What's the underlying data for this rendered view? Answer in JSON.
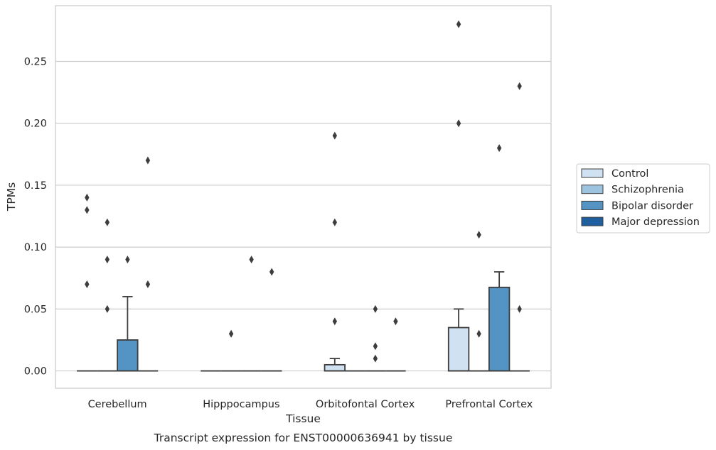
{
  "chart_data": {
    "type": "box",
    "caption": "Transcript expression for ENST00000636941 by tissue",
    "xlabel": "Tissue",
    "ylabel": "TPMs",
    "ylim": [
      -0.014,
      0.295
    ],
    "yticks": [
      0.0,
      0.05,
      0.1,
      0.15,
      0.2,
      0.25
    ],
    "ytick_labels": [
      "0.00",
      "0.05",
      "0.10",
      "0.15",
      "0.20",
      "0.25"
    ],
    "grid": true,
    "legend_position": "right",
    "categories": [
      "Cerebellum",
      "Hipppocampus",
      "Orbitofontal Cortex",
      "Prefrontal Cortex"
    ],
    "series": [
      {
        "name": "Control",
        "color": "#d0e1f1",
        "boxes": [
          {
            "q1": 0.0,
            "median": 0.0,
            "q3": 0.0,
            "whisker_low": 0.0,
            "whisker_high": 0.0,
            "outliers": [
              0.07,
              0.13,
              0.14
            ]
          },
          {
            "q1": 0.0,
            "median": 0.0,
            "q3": 0.0,
            "whisker_low": 0.0,
            "whisker_high": 0.0,
            "outliers": []
          },
          {
            "q1": 0.0,
            "median": 0.0,
            "q3": 0.005,
            "whisker_low": 0.0,
            "whisker_high": 0.01,
            "outliers": [
              0.04,
              0.12,
              0.19
            ]
          },
          {
            "q1": 0.0,
            "median": 0.0,
            "q3": 0.035,
            "whisker_low": 0.0,
            "whisker_high": 0.05,
            "outliers": [
              0.2,
              0.28
            ]
          }
        ]
      },
      {
        "name": "Schizophrenia",
        "color": "#9dc4df",
        "boxes": [
          {
            "q1": 0.0,
            "median": 0.0,
            "q3": 0.0,
            "whisker_low": 0.0,
            "whisker_high": 0.0,
            "outliers": [
              0.05,
              0.09,
              0.12
            ]
          },
          {
            "q1": 0.0,
            "median": 0.0,
            "q3": 0.0,
            "whisker_low": 0.0,
            "whisker_high": 0.0,
            "outliers": [
              0.03
            ]
          },
          {
            "q1": 0.0,
            "median": 0.0,
            "q3": 0.0,
            "whisker_low": 0.0,
            "whisker_high": 0.0,
            "outliers": []
          },
          {
            "q1": 0.0,
            "median": 0.0,
            "q3": 0.0,
            "whisker_low": 0.0,
            "whisker_high": 0.0,
            "outliers": [
              0.03,
              0.11
            ]
          }
        ]
      },
      {
        "name": "Bipolar disorder",
        "color": "#5394c4",
        "boxes": [
          {
            "q1": 0.0,
            "median": 0.0,
            "q3": 0.025,
            "whisker_low": 0.0,
            "whisker_high": 0.06,
            "outliers": [
              0.09
            ]
          },
          {
            "q1": 0.0,
            "median": 0.0,
            "q3": 0.0,
            "whisker_low": 0.0,
            "whisker_high": 0.0,
            "outliers": [
              0.09
            ]
          },
          {
            "q1": 0.0,
            "median": 0.0,
            "q3": 0.0,
            "whisker_low": 0.0,
            "whisker_high": 0.0,
            "outliers": [
              0.01,
              0.02,
              0.05
            ]
          },
          {
            "q1": 0.0,
            "median": 0.0,
            "q3": 0.0675,
            "whisker_low": 0.0,
            "whisker_high": 0.08,
            "outliers": [
              0.18
            ]
          }
        ]
      },
      {
        "name": "Major depression",
        "color": "#1f5f9f",
        "boxes": [
          {
            "q1": 0.0,
            "median": 0.0,
            "q3": 0.0,
            "whisker_low": 0.0,
            "whisker_high": 0.0,
            "outliers": [
              0.07,
              0.17
            ]
          },
          {
            "q1": 0.0,
            "median": 0.0,
            "q3": 0.0,
            "whisker_low": 0.0,
            "whisker_high": 0.0,
            "outliers": [
              0.08
            ]
          },
          {
            "q1": 0.0,
            "median": 0.0,
            "q3": 0.0,
            "whisker_low": 0.0,
            "whisker_high": 0.0,
            "outliers": [
              0.04
            ]
          },
          {
            "q1": 0.0,
            "median": 0.0,
            "q3": 0.0,
            "whisker_low": 0.0,
            "whisker_high": 0.0,
            "outliers": [
              0.05,
              0.23
            ]
          }
        ]
      }
    ]
  }
}
